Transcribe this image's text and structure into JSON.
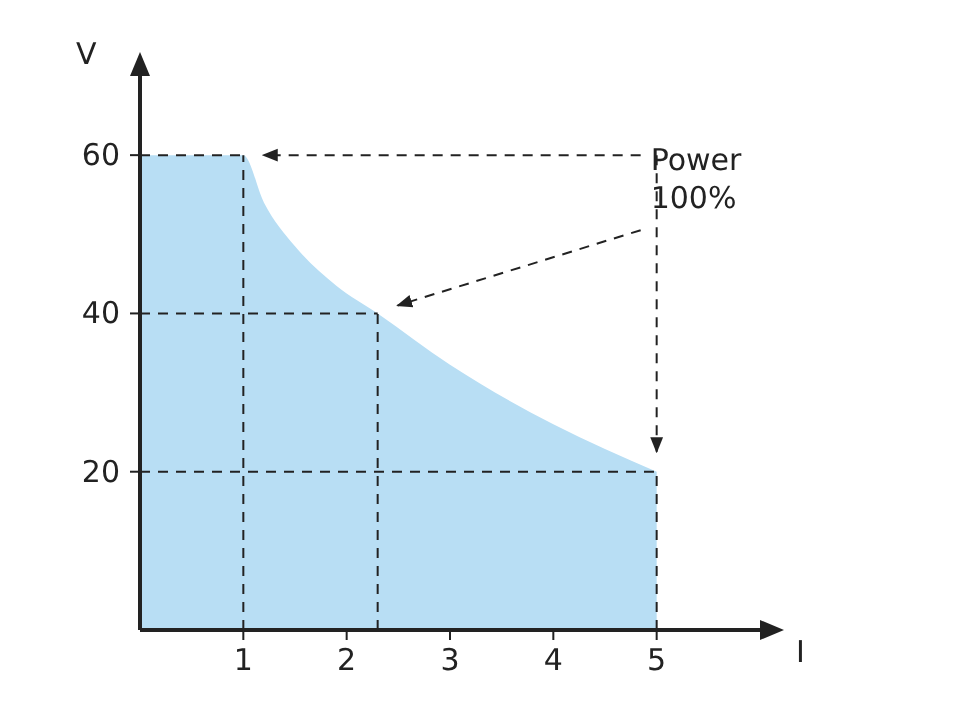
{
  "chart_data": {
    "type": "area",
    "xlabel": "I",
    "ylabel": "V",
    "x": [
      0,
      1,
      1.2,
      1.5,
      1.9,
      2.3,
      3,
      4,
      5
    ],
    "series": [
      {
        "color": "#b8def4",
        "values": [
          60,
          60,
          54,
          48.5,
          43.5,
          40,
          33.5,
          26,
          20
        ]
      }
    ],
    "xlim": [
      0,
      6
    ],
    "ylim": [
      0,
      70
    ],
    "xticks": [
      1,
      2,
      3,
      4,
      5
    ],
    "yticks": [
      20,
      40,
      60
    ],
    "ref_lines": [
      {
        "axis": "y",
        "value": 60,
        "line_style": "dashed"
      },
      {
        "axis": "y",
        "value": 40,
        "line_style": "dashed"
      },
      {
        "axis": "y",
        "value": 20,
        "line_style": "dashed"
      },
      {
        "axis": "x",
        "value": 1,
        "line_style": "dashed"
      },
      {
        "axis": "x",
        "value": 2.3,
        "line_style": "dashed"
      },
      {
        "axis": "x",
        "value": 5,
        "line_style": "dashed"
      }
    ],
    "annotations": [
      "Power\n100%"
    ]
  }
}
